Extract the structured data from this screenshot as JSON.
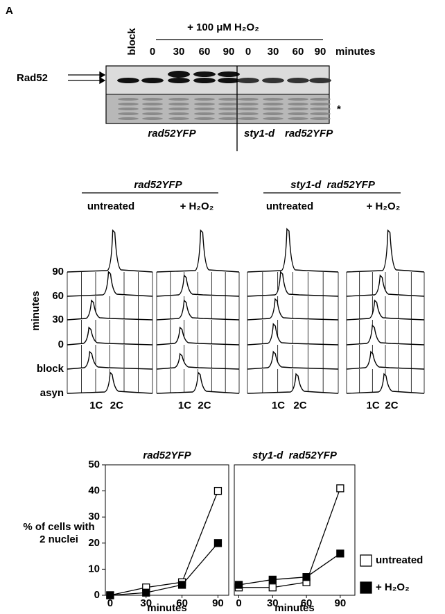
{
  "panel_label": "A",
  "blot": {
    "block_label": "block",
    "treatment": "+ 100 μM H₂O₂",
    "time_points": [
      "0",
      "30",
      "60",
      "90",
      "0",
      "30",
      "60",
      "90"
    ],
    "time_unit": "minutes",
    "protein": "Rad52",
    "loading_mark": "*",
    "strain_left": "rad52YFP",
    "strain_right_mutation": "sty1-d",
    "strain_right_tag": "rad52YFP"
  },
  "flow": {
    "groups": [
      {
        "strain": "rad52YFP",
        "conditions": [
          "untreated",
          "+ H₂O₂"
        ]
      },
      {
        "strain": "sty1-d  rad52YFP",
        "conditions": [
          "untreated",
          "+ H₂O₂"
        ]
      }
    ],
    "row_labels": [
      "90",
      "60",
      "30",
      "0",
      "block",
      "asyn"
    ],
    "axis_title": "minutes",
    "x_labels": [
      "1C",
      "2C"
    ]
  },
  "chart_data": [
    {
      "type": "line",
      "title": "rad52YFP",
      "ylabel": [
        "% of cells with",
        "2 nuclei"
      ],
      "xlabel": "minutes",
      "x": [
        0,
        30,
        60,
        90
      ],
      "xlim": [
        -4,
        99
      ],
      "xticks": [
        0,
        30,
        60,
        90
      ],
      "ylim": [
        0,
        50
      ],
      "yticks": [
        0,
        10,
        20,
        30,
        40,
        50
      ],
      "series": [
        {
          "color": "#ffffff",
          "values": [
            0,
            3,
            5,
            40
          ]
        },
        {
          "color": "#000000",
          "values": [
            0,
            1,
            4,
            20
          ]
        }
      ]
    },
    {
      "type": "line",
      "title": "sty1-d  rad52YFP",
      "xlabel": "minutes",
      "x": [
        0,
        30,
        60,
        90
      ],
      "xlim": [
        -4,
        103
      ],
      "xticks": [
        0,
        30,
        60,
        90
      ],
      "ylim": [
        0,
        50
      ],
      "series": [
        {
          "name": "untreated",
          "color": "#ffffff",
          "values": [
            3,
            3,
            5,
            41
          ]
        },
        {
          "name": "+ H₂O₂",
          "color": "#000000",
          "values": [
            4,
            6,
            7,
            16
          ]
        }
      ]
    }
  ]
}
